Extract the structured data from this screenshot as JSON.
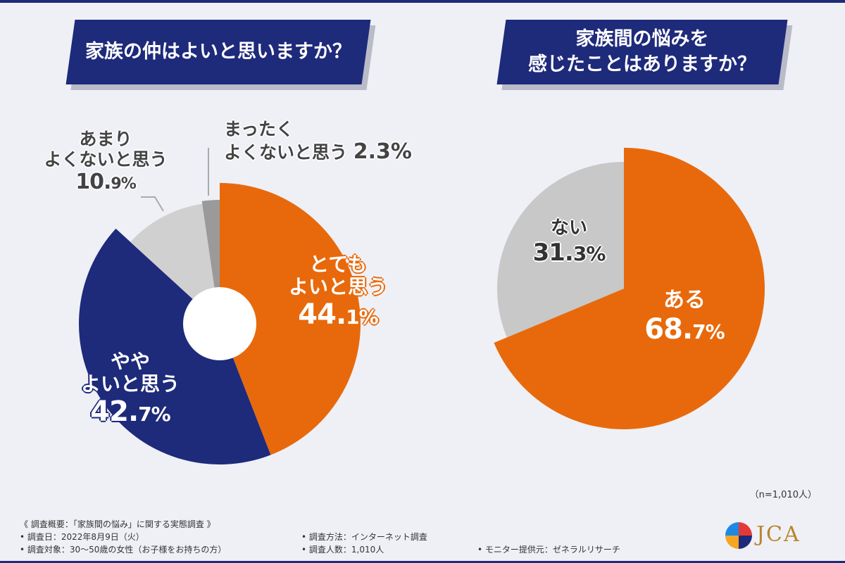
{
  "chart_data": [
    {
      "type": "pie",
      "title": "家族の仲はよいと思いますか？",
      "donut": true,
      "slices": [
        {
          "label": "とてもよいと思う",
          "value": 44.1,
          "color": "#e8690b"
        },
        {
          "label": "ややよいと思う",
          "value": 42.7,
          "color": "#1e2a7a"
        },
        {
          "label": "あまりよくないと思う",
          "value": 10.9,
          "color": "#d0d0d0"
        },
        {
          "label": "まったくよくないと思う",
          "value": 2.3,
          "color": "#9a9a9a"
        }
      ]
    },
    {
      "type": "pie",
      "title": "家族間の悩みを感じたことはありますか？",
      "slices": [
        {
          "label": "ある",
          "value": 68.7,
          "color": "#e8690b"
        },
        {
          "label": "ない",
          "value": 31.3,
          "color": "#c8c8c8"
        }
      ]
    }
  ],
  "q1": {
    "title": "家族の仲はよいと思いますか？"
  },
  "q2": {
    "line1": "家族間の悩みを",
    "line2": "感じたことはありますか？"
  },
  "labels": {
    "totemo": {
      "l1": "とても",
      "l2": "よいと思う",
      "int": "44.",
      "dec": "1%"
    },
    "yaya": {
      "l1": "やや",
      "l2": "よいと思う",
      "int": "42.",
      "dec": "7%"
    },
    "amari": {
      "l1": "あまり",
      "l2": "よくないと思う",
      "int": "10.",
      "dec": "9%"
    },
    "mattaku": {
      "l1": "まったく",
      "l2": "よくないと思う",
      "pct": "2.3%"
    },
    "aru": {
      "l1": "ある",
      "int": "68.",
      "dec": "7%"
    },
    "nai": {
      "l1": "ない",
      "int": "31.",
      "dec": "3%"
    }
  },
  "sample": "（n=1,010人）",
  "footer": {
    "title": "《 調査概要：「家族間の悩み」に関する実態調査 》",
    "date": "• 調査日：2022年8月9日（火）",
    "target": "• 調査対象：30〜50歳の女性（お子様をお持ちの方）",
    "method": "• 調査方法：インターネット調査",
    "count": "• 調査人数：1,010人",
    "monitor": "• モニター提供元：ゼネラルリサーチ"
  },
  "logo": {
    "text": "JCA"
  }
}
